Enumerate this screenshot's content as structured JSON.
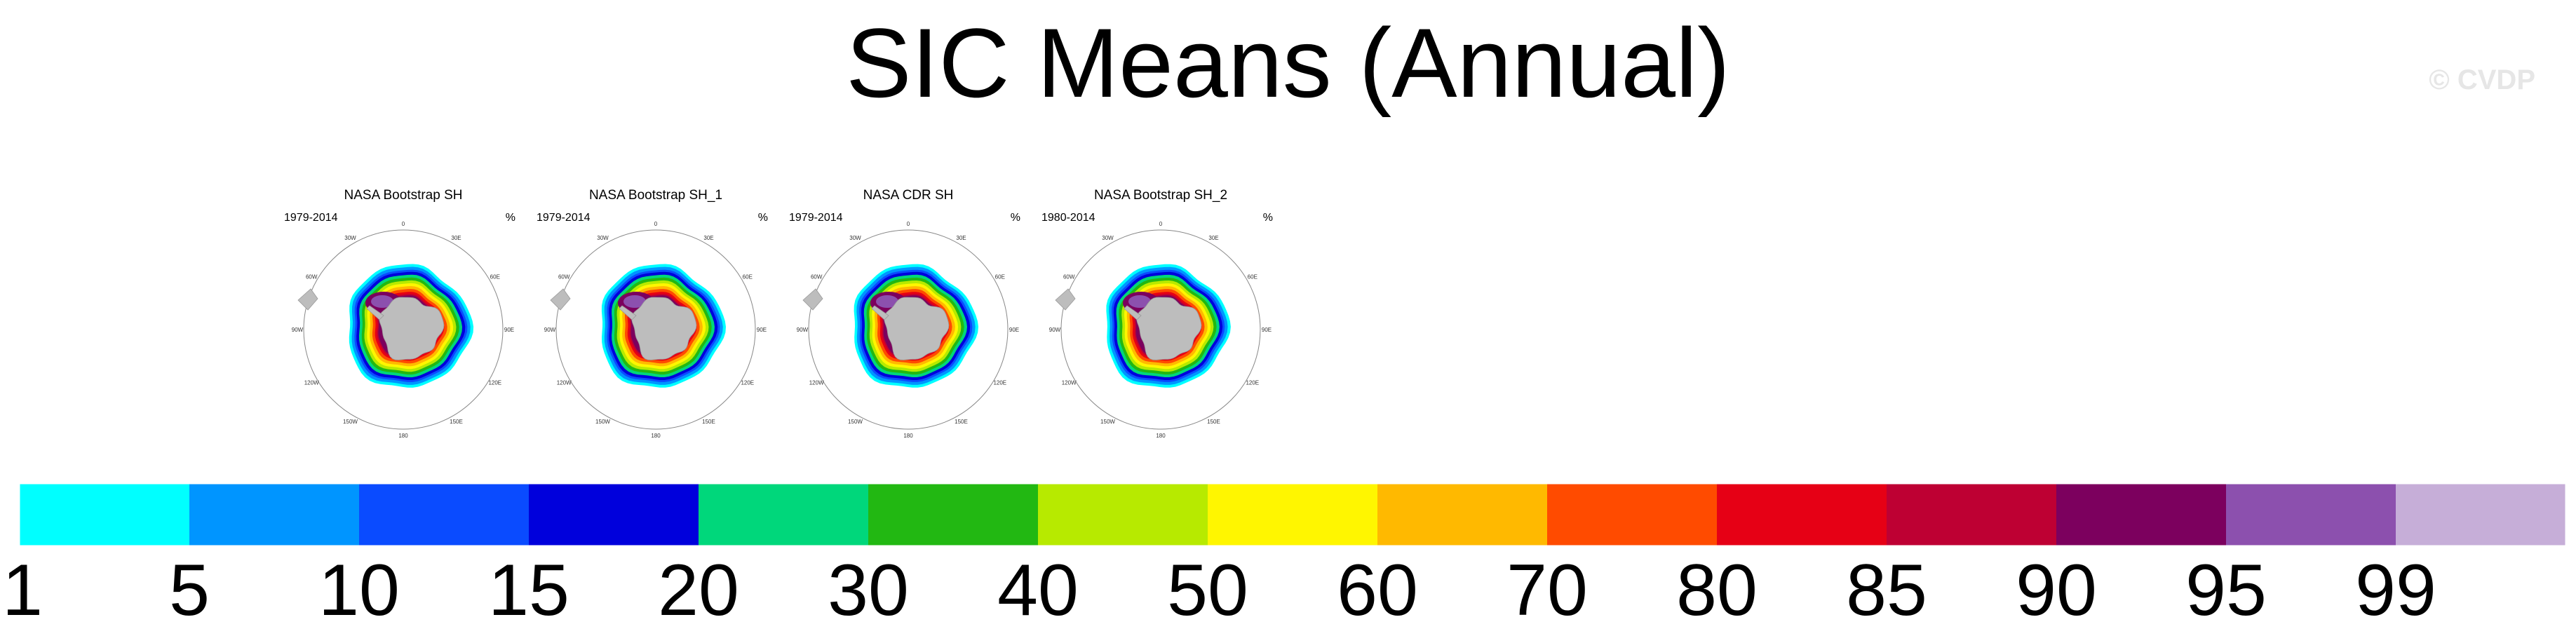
{
  "title": "SIC Means (Annual)",
  "watermark": "© CVDP",
  "panels": [
    {
      "title": "NASA Bootstrap SH",
      "years": "1979-2014",
      "unit": "%"
    },
    {
      "title": "NASA Bootstrap SH_1",
      "years": "1979-2014",
      "unit": "%"
    },
    {
      "title": "NASA CDR SH",
      "years": "1979-2014",
      "unit": "%"
    },
    {
      "title": "NASA Bootstrap SH_2",
      "years": "1980-2014",
      "unit": "%"
    }
  ],
  "map_labels": [
    "0",
    "30E",
    "60E",
    "90E",
    "120E",
    "150E",
    "180",
    "150W",
    "120W",
    "90W",
    "60W",
    "30W"
  ],
  "chart_data": {
    "type": "heatmap",
    "title": "SIC Means (Annual)",
    "description_unit": "%",
    "colorbar": {
      "ticks": [
        "1",
        "5",
        "10",
        "15",
        "20",
        "30",
        "40",
        "50",
        "60",
        "70",
        "80",
        "85",
        "90",
        "95",
        "99"
      ],
      "bounds": [
        1,
        5,
        10,
        15,
        20,
        30,
        40,
        50,
        60,
        70,
        80,
        85,
        90,
        95,
        99
      ],
      "colors": [
        "#00ffff",
        "#0095ff",
        "#0a4bff",
        "#0000dc",
        "#00d77b",
        "#22b812",
        "#b7ea00",
        "#fff600",
        "#ffb900",
        "#ff4b00",
        "#e60015",
        "#be0033",
        "#7c005e",
        "#8c50ae",
        "#c6aed8"
      ]
    },
    "panels": [
      {
        "name": "NASA Bootstrap SH",
        "period": "1979-2014"
      },
      {
        "name": "NASA Bootstrap SH_1",
        "period": "1979-2014"
      },
      {
        "name": "NASA CDR SH",
        "period": "1979-2014"
      },
      {
        "name": "NASA Bootstrap SH_2",
        "period": "1980-2014"
      }
    ]
  }
}
